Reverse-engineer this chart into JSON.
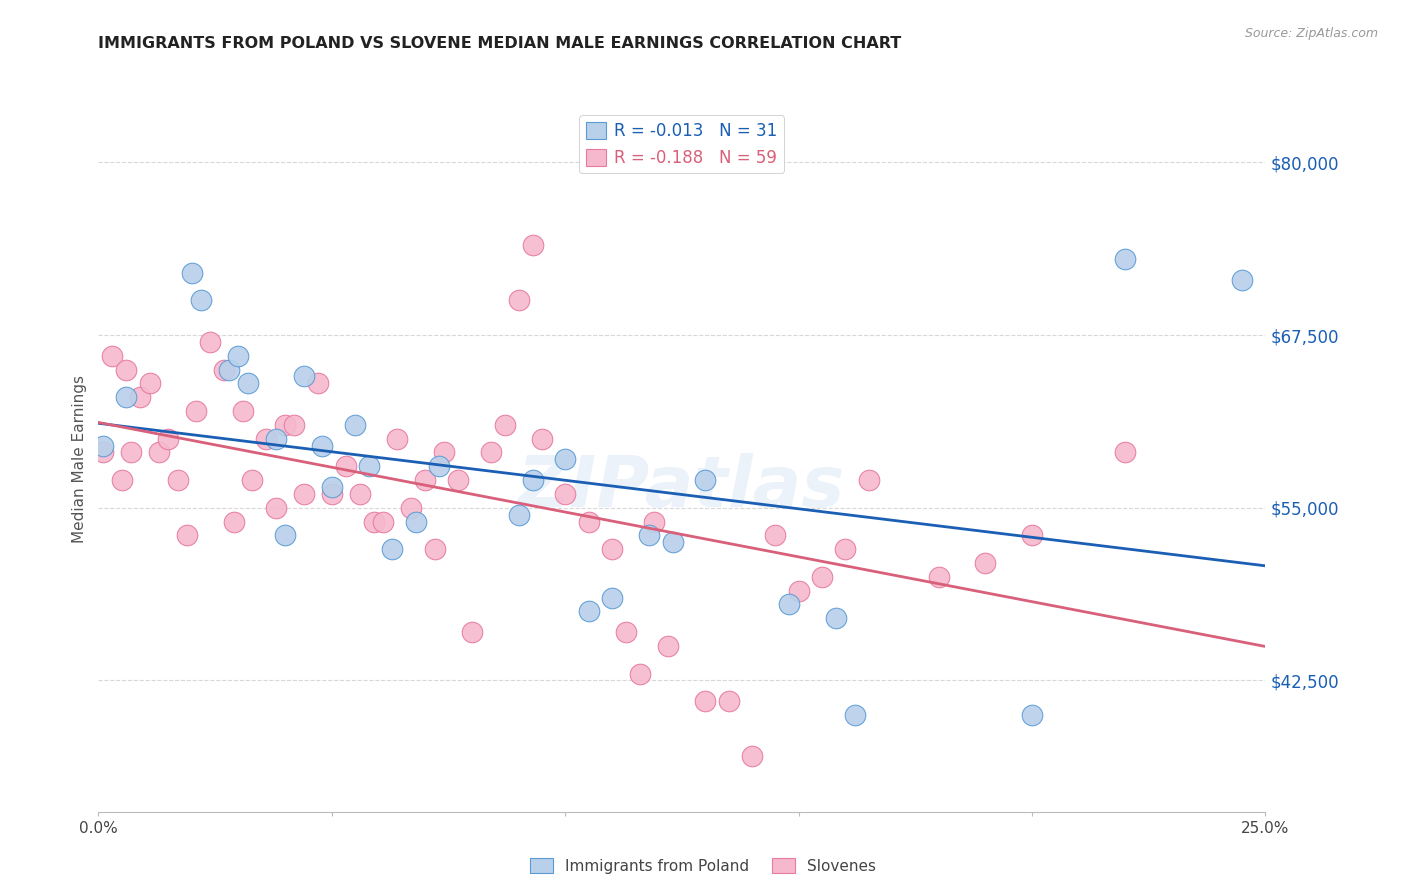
{
  "title": "IMMIGRANTS FROM POLAND VS SLOVENE MEDIAN MALE EARNINGS CORRELATION CHART",
  "source": "Source: ZipAtlas.com",
  "ylabel": "Median Male Earnings",
  "xlim": [
    0.0,
    0.25
  ],
  "ylim": [
    33000,
    84000
  ],
  "yticks": [
    42500,
    55000,
    67500,
    80000
  ],
  "ytick_labels": [
    "$42,500",
    "$55,000",
    "$67,500",
    "$80,000"
  ],
  "xticks": [
    0.0,
    0.05,
    0.1,
    0.15,
    0.2,
    0.25
  ],
  "xtick_labels": [
    "0.0%",
    "",
    "",
    "",
    "",
    "25.0%"
  ],
  "background_color": "#ffffff",
  "grid_color": "#d8d8d8",
  "poland_color": "#b8d0ea",
  "slovene_color": "#f5b8cd",
  "poland_edge_color": "#5b9bd5",
  "slovene_edge_color": "#e87aa0",
  "trend_poland_color": "#1a5fb4",
  "trend_slovene_color": "#d9607a",
  "legend_R_poland": "R = -0.013",
  "legend_N_poland": "N = 31",
  "legend_R_slovene": "R = -0.188",
  "legend_N_slovene": "N = 59",
  "poland_x": [
    0.001,
    0.006,
    0.02,
    0.022,
    0.028,
    0.03,
    0.032,
    0.038,
    0.04,
    0.044,
    0.048,
    0.05,
    0.055,
    0.058,
    0.063,
    0.068,
    0.073,
    0.09,
    0.093,
    0.1,
    0.105,
    0.11,
    0.118,
    0.123,
    0.13,
    0.148,
    0.158,
    0.162,
    0.2,
    0.22,
    0.245
  ],
  "poland_y": [
    59500,
    63000,
    72000,
    70000,
    65000,
    66000,
    64000,
    60000,
    53000,
    64500,
    59500,
    56500,
    61000,
    58000,
    52000,
    54000,
    58000,
    54500,
    57000,
    58500,
    47500,
    48500,
    53000,
    52500,
    57000,
    48000,
    47000,
    40000,
    40000,
    73000,
    71500
  ],
  "slovene_x": [
    0.001,
    0.003,
    0.005,
    0.006,
    0.007,
    0.009,
    0.011,
    0.013,
    0.015,
    0.017,
    0.019,
    0.021,
    0.024,
    0.027,
    0.029,
    0.031,
    0.033,
    0.036,
    0.038,
    0.04,
    0.042,
    0.044,
    0.047,
    0.05,
    0.053,
    0.056,
    0.059,
    0.061,
    0.064,
    0.067,
    0.07,
    0.072,
    0.074,
    0.077,
    0.08,
    0.084,
    0.087,
    0.09,
    0.093,
    0.095,
    0.1,
    0.105,
    0.11,
    0.113,
    0.116,
    0.119,
    0.122,
    0.13,
    0.135,
    0.14,
    0.145,
    0.15,
    0.155,
    0.16,
    0.165,
    0.18,
    0.19,
    0.2,
    0.22
  ],
  "slovene_y": [
    59000,
    66000,
    57000,
    65000,
    59000,
    63000,
    64000,
    59000,
    60000,
    57000,
    53000,
    62000,
    67000,
    65000,
    54000,
    62000,
    57000,
    60000,
    55000,
    61000,
    61000,
    56000,
    64000,
    56000,
    58000,
    56000,
    54000,
    54000,
    60000,
    55000,
    57000,
    52000,
    59000,
    57000,
    46000,
    59000,
    61000,
    70000,
    74000,
    60000,
    56000,
    54000,
    52000,
    46000,
    43000,
    54000,
    45000,
    41000,
    41000,
    37000,
    53000,
    49000,
    50000,
    52000,
    57000,
    50000,
    51000,
    53000,
    59000
  ]
}
